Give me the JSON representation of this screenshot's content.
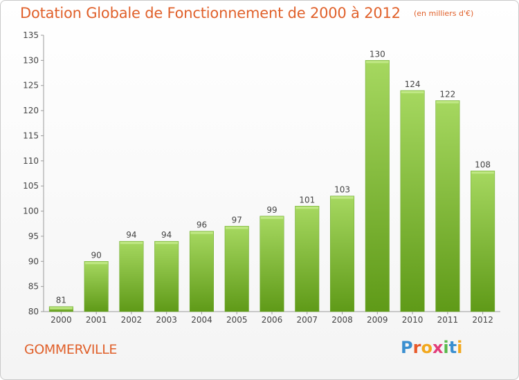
{
  "header": {
    "title": "Dotation Globale de Fonctionnement de 2000 à 2012",
    "subtitle": "(en milliers d'€)"
  },
  "footer": {
    "commune": "GOMMERVILLE",
    "logo_text": "Proxiti"
  },
  "colors": {
    "title": "#e0602a",
    "bar_top": "#a6d860",
    "bar_bottom": "#5f9a18",
    "logo_letters": [
      "#3a8fd0",
      "#e85a2a",
      "#f2a81d",
      "#e23c7a",
      "#58b84a",
      "#3a8fd0"
    ]
  },
  "chart_data": {
    "type": "bar",
    "title": "Dotation Globale de Fonctionnement de 2000 à 2012",
    "subtitle": "(en milliers d'€)",
    "categories": [
      "2000",
      "2001",
      "2002",
      "2003",
      "2004",
      "2005",
      "2006",
      "2007",
      "2008",
      "2009",
      "2010",
      "2011",
      "2012"
    ],
    "values": [
      81,
      90,
      94,
      94,
      96,
      97,
      99,
      101,
      103,
      130,
      124,
      122,
      108
    ],
    "ylim": [
      80,
      135
    ],
    "yticks": [
      80,
      85,
      90,
      95,
      100,
      105,
      110,
      115,
      120,
      125,
      130,
      135
    ],
    "grid": false,
    "data_labels": true
  }
}
